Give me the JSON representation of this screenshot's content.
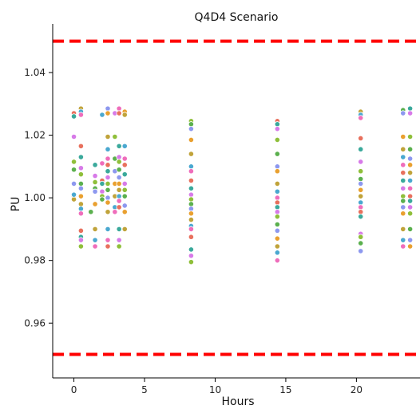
{
  "chart_data": {
    "type": "scatter",
    "title": "Q4D4 Scenario",
    "xlabel": "Hours",
    "ylabel": "PU",
    "xlim": [
      -1.5,
      24.5
    ],
    "ylim": [
      0.9425,
      1.0545
    ],
    "xticks": [
      0,
      5,
      10,
      15,
      20
    ],
    "yticks": [
      0.96,
      0.98,
      1.0,
      1.02,
      1.04
    ],
    "xtick_labels": [
      "0",
      "5",
      "10",
      "15",
      "20"
    ],
    "ytick_labels": [
      "0.96",
      "0.98",
      "1.00",
      "1.02",
      "1.04"
    ],
    "grid": false,
    "limit_lines": {
      "values": [
        1.05,
        0.95
      ],
      "color": "#ff0000",
      "style": "dashed"
    },
    "point_colors": [
      "#e8705d",
      "#c0a33a",
      "#5bb04e",
      "#3aa99b",
      "#4aa8d0",
      "#8d98ef",
      "#d77ae8",
      "#ef6dbb",
      "#e9a02f",
      "#8fbf3a"
    ],
    "columns": [
      {
        "x": 0.0,
        "values": [
          1.027,
          1.026,
          1.0195,
          1.0115,
          1.009,
          1.0045,
          1.0005,
          0.9995,
          1.001
        ]
      },
      {
        "x": 0.5,
        "values": [
          1.0285,
          1.0275,
          1.0265,
          1.0165,
          1.013,
          1.0095,
          1.0075,
          1.0045,
          1.003,
          1.0005,
          0.998,
          0.9965,
          0.995,
          0.9895,
          0.9875,
          0.9865,
          0.9845
        ]
      },
      {
        "x": 1.2,
        "values": [
          0.9955
        ]
      },
      {
        "x": 1.5,
        "values": [
          1.0105,
          1.007,
          1.005,
          1.003,
          1.002,
          0.998,
          0.99,
          0.9865,
          0.9845
        ]
      },
      {
        "x": 2.0,
        "values": [
          1.0265,
          1.011,
          1.0055,
          1.0045,
          1.002,
          1.0005,
          0.9995
        ]
      },
      {
        "x": 2.4,
        "values": [
          1.0285,
          1.027,
          1.0195,
          1.0155,
          1.0125,
          1.0105,
          1.0085,
          1.0065,
          1.0045,
          1.0025,
          1.0,
          0.9985,
          0.9955,
          0.99,
          0.9865,
          0.9845
        ]
      },
      {
        "x": 2.9,
        "values": [
          1.027,
          1.0195,
          1.0125,
          1.0085,
          1.0045,
          1.0005,
          0.997,
          0.9955
        ]
      },
      {
        "x": 3.2,
        "values": [
          1.0285,
          1.027,
          1.0165,
          1.013,
          1.0115,
          1.009,
          1.0065,
          1.0045,
          1.0025,
          1.0005,
          0.999,
          0.997,
          0.99,
          0.9865,
          0.9845
        ]
      },
      {
        "x": 3.6,
        "values": [
          1.0275,
          1.0265,
          1.0165,
          1.0125,
          1.0105,
          1.0075,
          1.0045,
          1.0025,
          1.0005,
          0.9975,
          0.9955,
          0.99
        ]
      },
      {
        "x": 8.3,
        "values": [
          1.0245,
          1.0235,
          1.022,
          1.0185,
          1.014,
          1.01,
          1.0085,
          1.0055,
          1.003,
          1.001,
          0.9995,
          0.998,
          0.9965,
          0.995,
          0.993,
          0.991,
          0.99,
          0.9875,
          0.9835,
          0.9815,
          0.9795
        ]
      },
      {
        "x": 14.4,
        "values": [
          1.0245,
          1.0235,
          1.022,
          1.0185,
          1.014,
          1.01,
          1.0085,
          1.0045,
          1.002,
          1.0,
          0.9985,
          0.997,
          0.9955,
          0.994,
          0.9915,
          0.9895,
          0.987,
          0.9845,
          0.9825,
          0.98
        ]
      },
      {
        "x": 20.3,
        "values": [
          1.0275,
          1.0265,
          1.0255,
          1.019,
          1.0155,
          1.0115,
          1.0085,
          1.006,
          1.0045,
          1.0025,
          1.0005,
          0.9985,
          0.997,
          0.9955,
          0.994,
          0.9885,
          0.9875,
          0.9855,
          0.983
        ]
      },
      {
        "x": 23.3,
        "values": [
          1.028,
          1.027,
          1.0195,
          1.0155,
          1.013,
          1.0105,
          1.008,
          1.0055,
          1.003,
          1.0005,
          0.999,
          0.997,
          0.995,
          0.99,
          0.9865,
          0.9845
        ]
      },
      {
        "x": 23.8,
        "values": [
          1.0285,
          1.027,
          1.0195,
          1.0155,
          1.0125,
          1.0105,
          1.008,
          1.0055,
          1.003,
          1.0005,
          0.999,
          0.997,
          0.995,
          0.99,
          0.9865,
          0.9845
        ]
      }
    ]
  }
}
